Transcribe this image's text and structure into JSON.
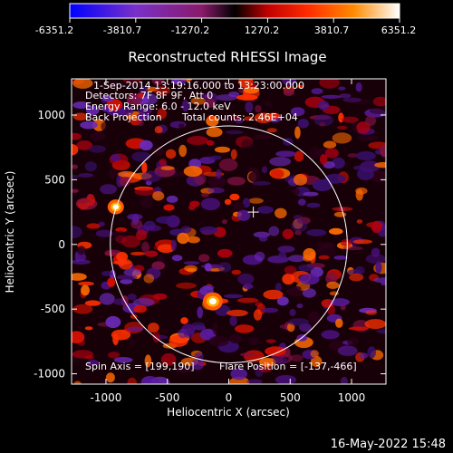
{
  "colorbar": {
    "ticks": [
      "-6351.2",
      "-3810.7",
      "-1270.2",
      "1270.2",
      "3810.7",
      "6351.2"
    ],
    "colors": [
      "#0000ff",
      "#7a30c8",
      "#8a1a6a",
      "#000000",
      "#c00000",
      "#ff2a00",
      "#ff8a00",
      "#ffffff"
    ]
  },
  "chart_data": {
    "type": "heatmap",
    "title": "Reconstructed RHESSI Image",
    "xlabel": "Heliocentric X (arcsec)",
    "ylabel": "Heliocentric Y (arcsec)",
    "xlim": [
      -1280,
      1280
    ],
    "ylim": [
      -1080,
      1280
    ],
    "xticks": [
      -1000,
      -500,
      0,
      500,
      1000
    ],
    "yticks": [
      -1000,
      -500,
      0,
      500,
      1000
    ],
    "xtick_labels": [
      "-1000",
      "-500",
      "0",
      "500",
      "1000"
    ],
    "ytick_labels": [
      "-1000",
      "-500",
      "0",
      "500",
      "1000"
    ],
    "color_range": [
      -6351.2,
      6351.2
    ],
    "solar_limb_radius_arcsec": 965,
    "sun_center_marker": [
      200,
      250
    ],
    "bright_sources": [
      {
        "x": -920,
        "y": 290,
        "level": 5200
      },
      {
        "x": -130,
        "y": -440,
        "level": 6351
      }
    ],
    "annotations": {
      "time_range": "1-Sep-2014 13:19:16.000 to 13:23:00.000",
      "detectors": "Detectors: 7F 8F 9F, Att 0",
      "energy_range": "Energy Range: 6.0 - 12.0 keV",
      "method": "Back Projection",
      "total_counts": "Total counts: 2.46E+04",
      "spin_axis": "Spin Axis = [199,190]",
      "flare_position": "Flare Position = [-137,-466]"
    }
  },
  "footer": {
    "timestamp": "16-May-2022 15:48"
  }
}
